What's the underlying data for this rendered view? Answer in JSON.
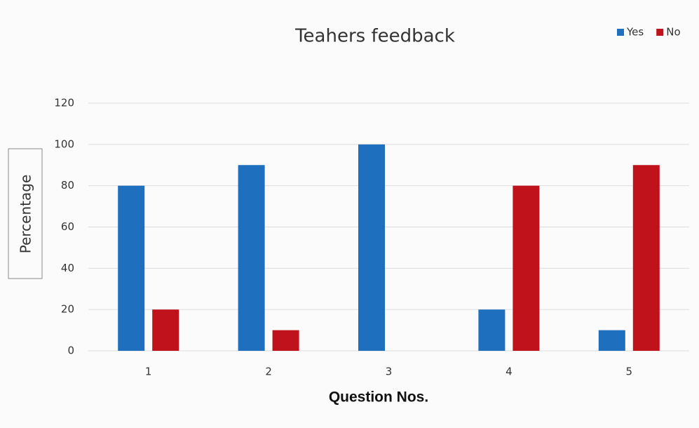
{
  "chart_data": {
    "type": "bar",
    "title": "Teahers feedback",
    "x_label": "Question Nos.",
    "y_label": "Percentage",
    "categories": [
      "1",
      "2",
      "3",
      "4",
      "5"
    ],
    "series": [
      {
        "name": "Yes",
        "color": "#1f6fbf",
        "values": [
          80,
          90,
          100,
          20,
          10
        ]
      },
      {
        "name": "No",
        "color": "#c0121b",
        "values": [
          20,
          10,
          0,
          80,
          90
        ]
      }
    ],
    "ylim": [
      0,
      120
    ],
    "yticks": [
      0,
      20,
      40,
      60,
      80,
      100,
      120
    ],
    "grid": true,
    "legend": "top-right"
  }
}
